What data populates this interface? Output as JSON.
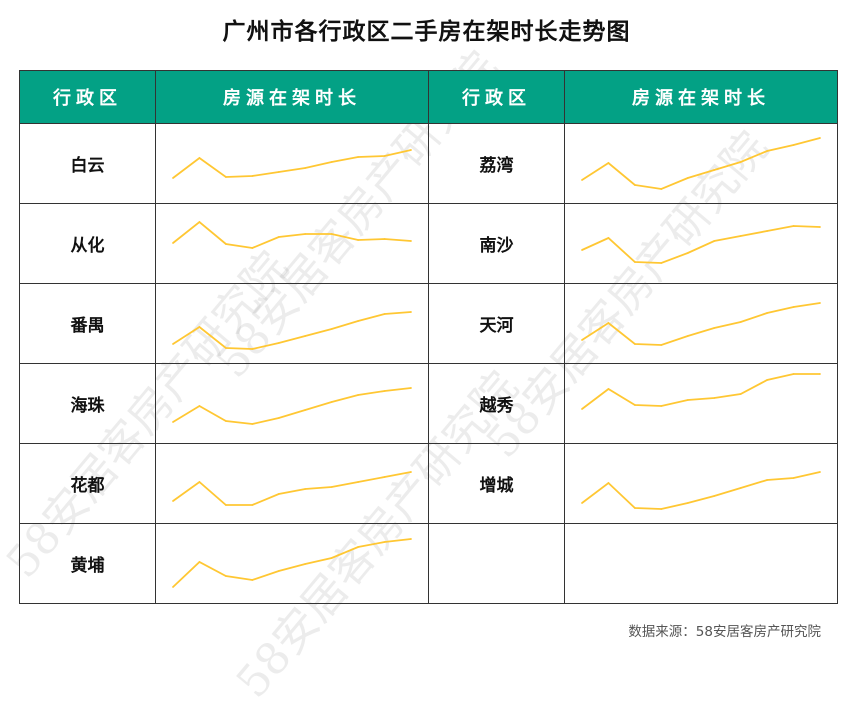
{
  "title": "广州市各行政区二手房在架时长走势图",
  "headers": [
    "行政区",
    "房源在架时长",
    "行政区",
    "房源在架时长"
  ],
  "source": "数据来源：58安居客房产研究院",
  "watermark": "58安居客房产研究院",
  "colors": {
    "header_bg": "#03a185",
    "line": "#ffc733"
  },
  "chart_data": {
    "type": "line",
    "note_scale": "relative (no axis printed)",
    "series": [
      {
        "name": "白云",
        "values": [
          22,
          42,
          23,
          24,
          28,
          32,
          38,
          43,
          44,
          50
        ]
      },
      {
        "name": "从化",
        "values": [
          37,
          58,
          36,
          32,
          43,
          46,
          46,
          40,
          41,
          39
        ]
      },
      {
        "name": "番禺",
        "values": [
          16,
          33,
          12,
          11,
          17,
          24,
          31,
          39,
          46,
          48
        ]
      },
      {
        "name": "海珠",
        "values": [
          18,
          34,
          19,
          16,
          22,
          30,
          38,
          45,
          49,
          52
        ]
      },
      {
        "name": "花都",
        "values": [
          19,
          38,
          15,
          15,
          26,
          31,
          33,
          38,
          43,
          48
        ]
      },
      {
        "name": "黄埔",
        "values": [
          13,
          38,
          24,
          20,
          29,
          36,
          42,
          53,
          58,
          61
        ]
      },
      {
        "name": "荔湾",
        "values": [
          20,
          37,
          15,
          11,
          22,
          30,
          38,
          49,
          55,
          62
        ]
      },
      {
        "name": "南沙",
        "values": [
          30,
          42,
          18,
          17,
          27,
          39,
          44,
          49,
          54,
          53
        ]
      },
      {
        "name": "天河",
        "values": [
          20,
          37,
          16,
          15,
          24,
          32,
          38,
          47,
          53,
          57
        ]
      },
      {
        "name": "越秀",
        "values": [
          31,
          51,
          35,
          34,
          40,
          42,
          46,
          60,
          66,
          66
        ]
      },
      {
        "name": "增城",
        "values": [
          17,
          37,
          12,
          11,
          17,
          24,
          32,
          40,
          42,
          48
        ]
      }
    ]
  }
}
